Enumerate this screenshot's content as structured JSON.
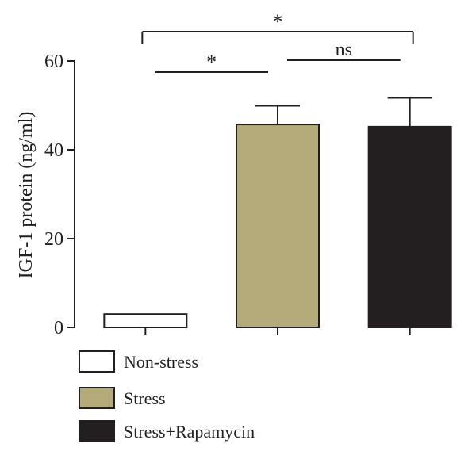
{
  "chart_data": {
    "type": "bar",
    "title": "",
    "xlabel": "",
    "ylabel": "IGF-1 protein (ng/ml)",
    "ylim": [
      0,
      60
    ],
    "yticks": [
      0,
      20,
      40,
      60
    ],
    "grid": false,
    "legend_position": "bottom-left",
    "categories": [
      "Non-stress",
      "Stress",
      "Stress+Rapamycin"
    ],
    "values": [
      3,
      45.7,
      45.2
    ],
    "error": [
      0,
      4.2,
      6.5
    ],
    "colors": [
      "#ffffff",
      "#b4aa7a",
      "#231f20"
    ],
    "significance": [
      {
        "from": 0,
        "to": 1,
        "label": "*"
      },
      {
        "from": 1,
        "to": 2,
        "label": "ns"
      },
      {
        "from": 0,
        "to": 2,
        "label": "*"
      }
    ]
  }
}
